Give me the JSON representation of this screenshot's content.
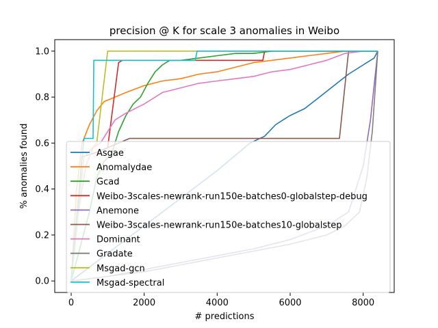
{
  "chart_data": {
    "type": "line",
    "title": "precision @ K for scale 3 anomalies in Weibo",
    "xlabel": "# predictions",
    "ylabel": "% anomalies found",
    "xlim": [
      -450,
      8850
    ],
    "ylim": [
      -0.05,
      1.05
    ],
    "xticks": [
      0,
      2000,
      4000,
      6000,
      8000
    ],
    "xtick_labels": [
      "0",
      "2000",
      "4000",
      "6000",
      "8000"
    ],
    "yticks": [
      0.0,
      0.2,
      0.4,
      0.6,
      0.8,
      1.0
    ],
    "ytick_labels": [
      "0.0",
      "0.2",
      "0.4",
      "0.6",
      "0.8",
      "1.0"
    ],
    "grid": false,
    "legend_position": "lower-left",
    "series": [
      {
        "name": "Asgae",
        "color": "#1f77b4",
        "x": [
          0,
          500,
          1000,
          2000,
          3000,
          4000,
          4900,
          5300,
          5600,
          5800,
          6000,
          6400,
          6800,
          7200,
          7600,
          8000,
          8300,
          8400
        ],
        "y": [
          0.0,
          0.06,
          0.12,
          0.24,
          0.36,
          0.48,
          0.6,
          0.63,
          0.68,
          0.7,
          0.72,
          0.75,
          0.8,
          0.85,
          0.9,
          0.94,
          0.97,
          1.0
        ]
      },
      {
        "name": "Anomalydae",
        "color": "#ff7f0e",
        "x": [
          0,
          150,
          300,
          500,
          700,
          900,
          1200,
          1500,
          2000,
          2500,
          3000,
          3500,
          4000,
          4500,
          5000,
          5500,
          6000,
          6500,
          7000,
          7500,
          8000,
          8400
        ],
        "y": [
          0.0,
          0.4,
          0.6,
          0.68,
          0.74,
          0.78,
          0.8,
          0.82,
          0.85,
          0.87,
          0.88,
          0.9,
          0.91,
          0.93,
          0.95,
          0.96,
          0.97,
          0.98,
          0.99,
          1.0,
          1.0,
          1.0
        ],
        "faded_end": 8400
      },
      {
        "name": "Gcad",
        "color": "#2ca02c",
        "x": [
          0,
          500,
          700,
          900,
          1100,
          1300,
          1500,
          1700,
          1900,
          2100,
          2300,
          2500,
          2700,
          3000,
          3500,
          4000,
          4500,
          5000,
          5500,
          6000,
          6500,
          7000,
          7500,
          8000,
          8400
        ],
        "y": [
          0.0,
          0.3,
          0.45,
          0.52,
          0.55,
          0.65,
          0.72,
          0.77,
          0.8,
          0.86,
          0.91,
          0.94,
          0.96,
          0.96,
          0.97,
          0.98,
          0.99,
          0.99,
          1.0,
          1.0,
          1.0,
          1.0,
          1.0,
          1.0,
          1.0
        ]
      },
      {
        "name": "Weibo-3scales-newrank-run150e-batches0-globalstep-debug",
        "color": "#d62728",
        "x": [
          0,
          300,
          700,
          1000,
          1300,
          1400,
          2000,
          3000,
          4000,
          5000,
          5250,
          5300,
          6000,
          7000,
          8000,
          8400
        ],
        "y": [
          0.0,
          0.54,
          0.56,
          0.58,
          0.95,
          0.96,
          0.96,
          0.96,
          0.96,
          0.96,
          0.96,
          1.0,
          1.0,
          1.0,
          1.0,
          1.0
        ]
      },
      {
        "name": "Anemone",
        "color": "#9467bd",
        "x": [
          0,
          1000,
          2000,
          3000,
          4000,
          5000,
          6000,
          7000,
          7600,
          8000,
          8200,
          8400
        ],
        "y": [
          0.0,
          0.02,
          0.05,
          0.08,
          0.11,
          0.14,
          0.18,
          0.24,
          0.3,
          0.5,
          0.7,
          1.0
        ]
      },
      {
        "name": "Weibo-3scales-newrank-run150e-batches10-globalstep",
        "color": "#8c564b",
        "x": [
          0,
          300,
          700,
          1000,
          1300,
          1600,
          1700,
          3000,
          4000,
          5000,
          6000,
          7000,
          7350,
          7600,
          8000,
          8400
        ],
        "y": [
          0.0,
          0.54,
          0.56,
          0.58,
          0.6,
          0.62,
          0.62,
          0.62,
          0.62,
          0.62,
          0.62,
          0.62,
          0.62,
          1.0,
          1.0,
          1.0
        ]
      },
      {
        "name": "Dominant",
        "color": "#e377c2",
        "x": [
          0,
          200,
          400,
          600,
          800,
          1000,
          1200,
          1500,
          2000,
          2500,
          3000,
          3500,
          4000,
          4500,
          5000,
          5500,
          6000,
          6500,
          7000,
          7500,
          8000,
          8400
        ],
        "y": [
          0.0,
          0.3,
          0.5,
          0.58,
          0.6,
          0.65,
          0.7,
          0.73,
          0.77,
          0.82,
          0.84,
          0.86,
          0.87,
          0.88,
          0.89,
          0.91,
          0.92,
          0.94,
          0.96,
          0.99,
          1.0,
          1.0
        ]
      },
      {
        "name": "Gradate",
        "color": "#7f7f7f",
        "x": [
          0,
          1000,
          2000,
          3000,
          4000,
          5000,
          6000,
          7000,
          7500,
          7900,
          8100,
          8250,
          8400
        ],
        "y": [
          0.0,
          0.02,
          0.04,
          0.07,
          0.1,
          0.13,
          0.16,
          0.2,
          0.24,
          0.3,
          0.45,
          0.65,
          1.0
        ]
      },
      {
        "name": "Msgad-gcn",
        "color": "#bcbd22",
        "x": [
          0,
          350,
          700,
          1000,
          1050,
          2000,
          3000,
          4000,
          5000,
          6000,
          7000,
          8000,
          8400
        ],
        "y": [
          0.0,
          0.54,
          0.6,
          1.0,
          1.0,
          1.0,
          1.0,
          1.0,
          1.0,
          1.0,
          1.0,
          1.0,
          1.0
        ]
      },
      {
        "name": "Msgad-spectral",
        "color": "#17becf",
        "x": [
          0,
          350,
          600,
          620,
          1500,
          2500,
          3400,
          3450,
          4500,
          5500,
          6500,
          7500,
          8400
        ],
        "y": [
          0.0,
          0.62,
          0.62,
          0.96,
          0.96,
          0.96,
          0.96,
          1.0,
          1.0,
          1.0,
          1.0,
          1.0,
          1.0
        ]
      }
    ]
  }
}
